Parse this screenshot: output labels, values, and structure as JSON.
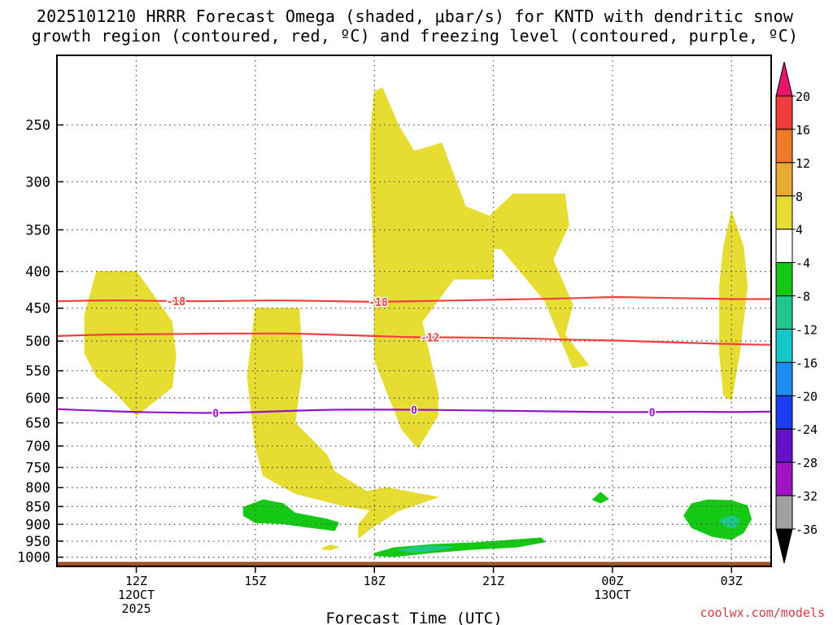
{
  "title": {
    "line1": "2025101210 HRRR Forecast Omega (shaded, μbar/s) for KNTD with dendritic snow",
    "line2": "growth region (contoured, red, ºC) and freezing level (contoured, purple, ºC)"
  },
  "watermark": "coolwx.com/models",
  "chart_data": {
    "type": "area",
    "title": "2025101210 HRRR Forecast Omega (shaded, μbar/s) for KNTD with dendritic snow growth region (contoured, red, ºC) and freezing level (contoured, purple, ºC)",
    "xlabel": "Forecast Time (UTC)",
    "ylabel": "",
    "x_unit": "hours from 2025-10-12 10Z",
    "xlim": [
      0,
      18
    ],
    "ylim": [
      1030,
      200
    ],
    "y_scale": "log-pressure",
    "grid": true,
    "y_ticks": [
      250,
      300,
      350,
      400,
      450,
      500,
      550,
      600,
      650,
      700,
      750,
      800,
      850,
      900,
      950,
      1000
    ],
    "x_ticks": [
      {
        "x": 2,
        "lines": [
          "12Z",
          "12OCT",
          "2025"
        ]
      },
      {
        "x": 5,
        "lines": [
          "15Z"
        ]
      },
      {
        "x": 8,
        "lines": [
          "18Z"
        ]
      },
      {
        "x": 11,
        "lines": [
          "21Z"
        ]
      },
      {
        "x": 14,
        "lines": [
          "00Z",
          "13OCT"
        ]
      },
      {
        "x": 17,
        "lines": [
          "03Z"
        ]
      }
    ],
    "colorbar": {
      "labels": [
        "20",
        "16",
        "12",
        "8",
        "4",
        "-4",
        "-8",
        "-12",
        "-16",
        "-20",
        "-24",
        "-28",
        "-32",
        "-36"
      ],
      "colors": [
        "#e8156e",
        "#f03c3c",
        "#f07a28",
        "#e8aa32",
        "#e6dc32",
        "#ffffff",
        "#14c814",
        "#1ec88c",
        "#14c8c8",
        "#1e8cf0",
        "#1e3cf0",
        "#6414c8",
        "#a014c8",
        "#a0a0a0",
        "#000000"
      ]
    },
    "ground": {
      "top_hpa": 1015,
      "color": "#a0522d"
    },
    "shaded_regions": [
      {
        "name": "omega 4-8",
        "color": "#e6dc32",
        "points": [
          [
            1.0,
            400
          ],
          [
            2.0,
            400
          ],
          [
            2.9,
            470
          ],
          [
            3.0,
            525
          ],
          [
            2.9,
            580
          ],
          [
            2.0,
            635
          ],
          [
            1.5,
            592
          ],
          [
            1.0,
            560
          ],
          [
            0.7,
            520
          ],
          [
            0.7,
            460
          ]
        ]
      },
      {
        "name": "omega 4-8",
        "color": "#e6dc32",
        "points": [
          [
            5.0,
            450
          ],
          [
            6.1,
            450
          ],
          [
            6.2,
            540
          ],
          [
            6.1,
            590
          ],
          [
            6.0,
            650
          ],
          [
            6.8,
            720
          ],
          [
            7.0,
            760
          ],
          [
            7.8,
            810
          ],
          [
            8.3,
            800
          ],
          [
            9.6,
            825
          ],
          [
            8.6,
            862
          ],
          [
            8.0,
            905
          ],
          [
            7.6,
            940
          ],
          [
            7.6,
            900
          ],
          [
            7.9,
            860
          ],
          [
            7.1,
            845
          ],
          [
            6.0,
            815
          ],
          [
            5.2,
            770
          ],
          [
            5.0,
            700
          ],
          [
            4.8,
            560
          ]
        ]
      },
      {
        "name": "omega 4-8",
        "color": "#e6dc32",
        "points": [
          [
            7.9,
            258
          ],
          [
            8.0,
            225
          ],
          [
            8.2,
            222
          ],
          [
            8.6,
            250
          ],
          [
            9.0,
            272
          ],
          [
            9.7,
            265
          ],
          [
            10.3,
            325
          ],
          [
            10.9,
            335
          ],
          [
            11.5,
            312
          ],
          [
            12.8,
            312
          ],
          [
            12.9,
            345
          ],
          [
            12.5,
            385
          ],
          [
            13.0,
            445
          ],
          [
            12.8,
            490
          ],
          [
            13.4,
            540
          ],
          [
            13.0,
            545
          ],
          [
            12.3,
            440
          ],
          [
            12.0,
            420
          ],
          [
            11.2,
            372
          ],
          [
            11.0,
            372
          ],
          [
            11.0,
            410
          ],
          [
            10.0,
            410
          ],
          [
            9.2,
            470
          ],
          [
            9.6,
            590
          ],
          [
            9.6,
            635
          ],
          [
            9.1,
            705
          ],
          [
            8.7,
            665
          ],
          [
            8.0,
            530
          ],
          [
            8.0,
            400
          ],
          [
            7.9,
            300
          ]
        ]
      },
      {
        "name": "omega 4-8",
        "color": "#e6dc32",
        "points": [
          [
            17.0,
            330
          ],
          [
            17.3,
            370
          ],
          [
            17.4,
            420
          ],
          [
            17.2,
            520
          ],
          [
            17.0,
            605
          ],
          [
            16.8,
            595
          ],
          [
            16.7,
            520
          ],
          [
            16.7,
            420
          ],
          [
            16.8,
            370
          ]
        ]
      },
      {
        "name": "omega 4-8",
        "color": "#e6dc32",
        "points": [
          [
            6.7,
            970
          ],
          [
            6.9,
            962
          ],
          [
            7.1,
            968
          ],
          [
            6.9,
            977
          ],
          [
            6.7,
            975
          ]
        ]
      },
      {
        "name": "omega -4 to -8",
        "color": "#14c814",
        "points": [
          [
            4.7,
            852
          ],
          [
            5.2,
            832
          ],
          [
            5.7,
            842
          ],
          [
            6.0,
            868
          ],
          [
            6.8,
            885
          ],
          [
            7.1,
            895
          ],
          [
            7.0,
            918
          ],
          [
            6.3,
            908
          ],
          [
            5.7,
            898
          ],
          [
            5.0,
            895
          ],
          [
            4.7,
            875
          ]
        ]
      },
      {
        "name": "omega -4 to -8",
        "color": "#14c814",
        "points": [
          [
            8.0,
            988
          ],
          [
            8.5,
            970
          ],
          [
            9.5,
            960
          ],
          [
            10.5,
            955
          ],
          [
            12.2,
            940
          ],
          [
            12.3,
            952
          ],
          [
            11.6,
            968
          ],
          [
            10.5,
            975
          ],
          [
            9.5,
            985
          ],
          [
            8.5,
            998
          ],
          [
            8.0,
            995
          ]
        ]
      },
      {
        "name": "omega -4 to -8",
        "color": "#14c814",
        "points": [
          [
            13.7,
            812
          ],
          [
            13.9,
            830
          ],
          [
            13.7,
            840
          ],
          [
            13.5,
            832
          ]
        ]
      },
      {
        "name": "omega -4 to -8",
        "color": "#14c814",
        "points": [
          [
            16.0,
            842
          ],
          [
            16.4,
            832
          ],
          [
            17.0,
            834
          ],
          [
            17.4,
            848
          ],
          [
            17.5,
            885
          ],
          [
            17.3,
            925
          ],
          [
            17.0,
            945
          ],
          [
            16.5,
            935
          ],
          [
            16.0,
            910
          ],
          [
            15.8,
            875
          ]
        ]
      },
      {
        "name": "omega -8 to -12",
        "color": "#1ec88c",
        "points": [
          [
            8.6,
            978
          ],
          [
            9.0,
            968
          ],
          [
            9.5,
            965
          ],
          [
            10.0,
            968
          ],
          [
            9.5,
            978
          ],
          [
            9.0,
            985
          ]
        ]
      },
      {
        "name": "omega -8 to -12",
        "color": "#1ec88c",
        "points": [
          [
            16.7,
            890
          ],
          [
            17.0,
            874
          ],
          [
            17.2,
            885
          ],
          [
            17.1,
            910
          ],
          [
            16.9,
            908
          ]
        ]
      }
    ],
    "contours": [
      {
        "label": "-18",
        "color": "#f04040",
        "label_x": [
          3.0,
          8.1
        ],
        "x": [
          0,
          1,
          2,
          3,
          4,
          5,
          6,
          7,
          8,
          9,
          10,
          11,
          12,
          13,
          14,
          15,
          16,
          17,
          18
        ],
        "y": [
          440,
          439,
          439,
          440,
          440,
          439,
          439,
          440,
          441,
          440,
          439,
          438,
          437,
          436,
          434,
          435,
          436,
          437,
          437
        ]
      },
      {
        "label": "-12",
        "color": "#f04040",
        "label_x": [
          9.4
        ],
        "x": [
          0,
          1,
          2,
          3,
          4,
          5,
          6,
          7,
          8,
          9,
          10,
          11,
          12,
          13,
          14,
          15,
          16,
          17,
          18
        ],
        "y": [
          492,
          490,
          489,
          489,
          488,
          488,
          488,
          490,
          492,
          494,
          494,
          495,
          496,
          498,
          499,
          501,
          503,
          505,
          506
        ]
      },
      {
        "label": "0",
        "color": "#9614c8",
        "label_x": [
          4.0,
          9.0,
          15.0
        ],
        "x": [
          0,
          1,
          2,
          3,
          4,
          5,
          6,
          7,
          8,
          9,
          10,
          11,
          12,
          13,
          14,
          15,
          16,
          17,
          18
        ],
        "y": [
          622,
          625,
          628,
          629,
          630,
          628,
          625,
          623,
          623,
          623,
          624,
          625,
          626,
          627,
          628,
          628,
          627,
          628,
          627
        ]
      }
    ]
  }
}
